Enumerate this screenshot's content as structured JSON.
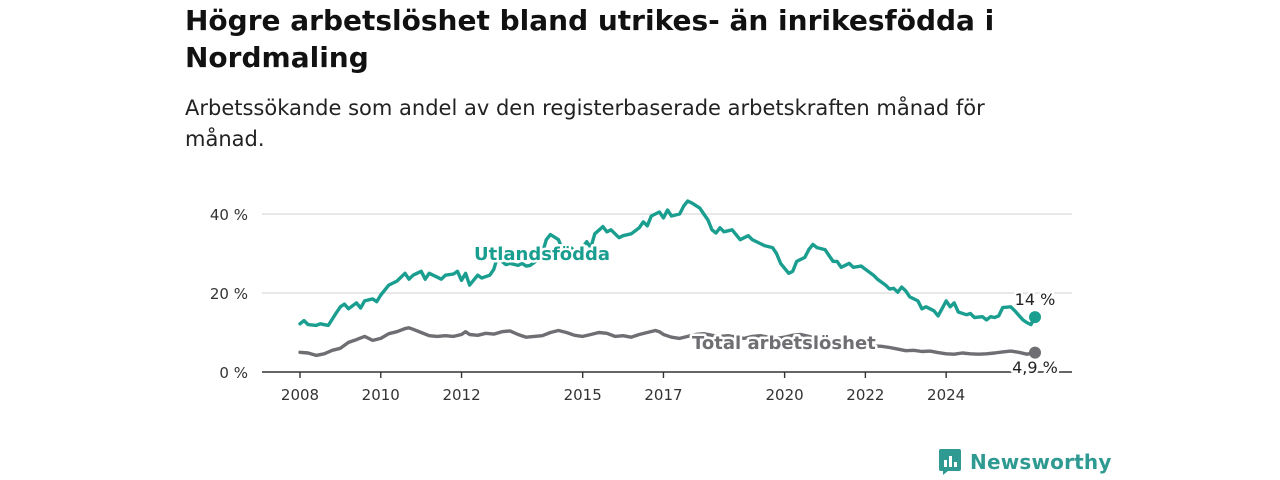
{
  "title": "Högre arbetslöshet bland utrikes- än inrikesfödda i Nordmaling",
  "subtitle": "Arbetssökande som andel av den registerbaserade arbetskraften månad för månad.",
  "brand": {
    "name": "Newsworthy",
    "icon": "newsworthy-logo-icon",
    "color": "#2f9a91"
  },
  "chart_data": {
    "type": "line",
    "title": "Högre arbetslöshet bland utrikes- än inrikesfödda i Nordmaling",
    "subtitle": "Arbetssökande som andel av den registerbaserade arbetskraften månad för månad.",
    "xlabel": "",
    "ylabel": "",
    "x_ticks": [
      2008,
      2010,
      2012,
      2015,
      2017,
      2020,
      2022,
      2024
    ],
    "y_ticks": [
      0,
      20,
      40
    ],
    "y_tick_labels": [
      "0 %",
      "20 %",
      "40 %"
    ],
    "ylim": [
      0,
      45
    ],
    "grid": true,
    "legend": "inline labels",
    "series": [
      {
        "name": "Utlandsfödda",
        "color": "#1a9e8f",
        "end_label": "14 %",
        "points": [
          [
            2008.0,
            12.2
          ],
          [
            2008.1,
            13
          ],
          [
            2008.2,
            12
          ],
          [
            2008.4,
            11.8
          ],
          [
            2008.5,
            12.2
          ],
          [
            2008.7,
            11.8
          ],
          [
            2008.9,
            15
          ],
          [
            2009.0,
            16.5
          ],
          [
            2009.1,
            17.2
          ],
          [
            2009.2,
            16
          ],
          [
            2009.4,
            17.5
          ],
          [
            2009.5,
            16.2
          ],
          [
            2009.6,
            18
          ],
          [
            2009.8,
            18.5
          ],
          [
            2009.9,
            17.8
          ],
          [
            2010.0,
            19.5
          ],
          [
            2010.2,
            22
          ],
          [
            2010.3,
            22.5
          ],
          [
            2010.4,
            23
          ],
          [
            2010.6,
            25
          ],
          [
            2010.7,
            23.5
          ],
          [
            2010.8,
            24.5
          ],
          [
            2011.0,
            25.5
          ],
          [
            2011.1,
            23.5
          ],
          [
            2011.2,
            25
          ],
          [
            2011.4,
            24
          ],
          [
            2011.5,
            23.5
          ],
          [
            2011.6,
            24.5
          ],
          [
            2011.8,
            24.8
          ],
          [
            2011.9,
            25.5
          ],
          [
            2012.0,
            23.2
          ],
          [
            2012.1,
            25
          ],
          [
            2012.2,
            22
          ],
          [
            2012.4,
            24.5
          ],
          [
            2012.5,
            23.8
          ],
          [
            2012.7,
            24.5
          ],
          [
            2012.8,
            26
          ],
          [
            2012.9,
            29.5
          ],
          [
            2013.0,
            28
          ],
          [
            2013.1,
            27.2
          ],
          [
            2013.2,
            27.5
          ],
          [
            2013.4,
            27
          ],
          [
            2013.5,
            27.5
          ],
          [
            2013.6,
            26.8
          ],
          [
            2013.7,
            27
          ],
          [
            2013.9,
            28.5
          ],
          [
            2014.0,
            30
          ],
          [
            2014.1,
            33.5
          ],
          [
            2014.2,
            34.8
          ],
          [
            2014.4,
            33.5
          ],
          [
            2014.5,
            31
          ],
          [
            2014.6,
            30.5
          ],
          [
            2014.7,
            31.5
          ],
          [
            2014.9,
            30
          ],
          [
            2015.0,
            31.5
          ],
          [
            2015.1,
            33
          ],
          [
            2015.2,
            31.5
          ],
          [
            2015.3,
            35
          ],
          [
            2015.5,
            36.8
          ],
          [
            2015.6,
            35.5
          ],
          [
            2015.7,
            36
          ],
          [
            2015.9,
            34
          ],
          [
            2016.0,
            34.5
          ],
          [
            2016.2,
            35
          ],
          [
            2016.4,
            36.5
          ],
          [
            2016.5,
            38
          ],
          [
            2016.6,
            37
          ],
          [
            2016.7,
            39.5
          ],
          [
            2016.9,
            40.5
          ],
          [
            2017.0,
            39
          ],
          [
            2017.1,
            41
          ],
          [
            2017.2,
            39.5
          ],
          [
            2017.4,
            40
          ],
          [
            2017.5,
            42
          ],
          [
            2017.6,
            43.3
          ],
          [
            2017.7,
            42.8
          ],
          [
            2017.9,
            41.5
          ],
          [
            2018.0,
            40
          ],
          [
            2018.1,
            38.5
          ],
          [
            2018.2,
            36
          ],
          [
            2018.3,
            35.2
          ],
          [
            2018.4,
            36.5
          ],
          [
            2018.5,
            35.5
          ],
          [
            2018.7,
            36
          ],
          [
            2018.9,
            33.5
          ],
          [
            2019.0,
            34
          ],
          [
            2019.1,
            34.5
          ],
          [
            2019.2,
            33.5
          ],
          [
            2019.4,
            32.5
          ],
          [
            2019.5,
            32
          ],
          [
            2019.7,
            31.5
          ],
          [
            2019.8,
            30
          ],
          [
            2019.9,
            27.5
          ],
          [
            2020.1,
            25
          ],
          [
            2020.2,
            25.5
          ],
          [
            2020.3,
            28
          ],
          [
            2020.5,
            29
          ],
          [
            2020.6,
            31
          ],
          [
            2020.7,
            32.3
          ],
          [
            2020.8,
            31.5
          ],
          [
            2021.0,
            31
          ],
          [
            2021.1,
            29.5
          ],
          [
            2021.2,
            28
          ],
          [
            2021.3,
            28
          ],
          [
            2021.4,
            26.5
          ],
          [
            2021.6,
            27.5
          ],
          [
            2021.7,
            26.5
          ],
          [
            2021.9,
            26.8
          ],
          [
            2022.0,
            26
          ],
          [
            2022.2,
            24.5
          ],
          [
            2022.3,
            23.5
          ],
          [
            2022.5,
            22
          ],
          [
            2022.6,
            21
          ],
          [
            2022.7,
            21.2
          ],
          [
            2022.8,
            20.2
          ],
          [
            2022.9,
            21.5
          ],
          [
            2023.0,
            20.5
          ],
          [
            2023.1,
            19
          ],
          [
            2023.3,
            18
          ],
          [
            2023.4,
            16
          ],
          [
            2023.5,
            16.5
          ],
          [
            2023.7,
            15.5
          ],
          [
            2023.8,
            14.2
          ],
          [
            2024.0,
            18
          ],
          [
            2024.1,
            16.5
          ],
          [
            2024.2,
            17.5
          ],
          [
            2024.3,
            15.2
          ],
          [
            2024.5,
            14.5
          ],
          [
            2024.6,
            14.8
          ],
          [
            2024.7,
            13.8
          ],
          [
            2024.9,
            14
          ],
          [
            2025.0,
            13.2
          ],
          [
            2025.1,
            14
          ],
          [
            2025.2,
            13.8
          ],
          [
            2025.3,
            14.2
          ],
          [
            2025.4,
            16.3
          ],
          [
            2025.6,
            16.5
          ],
          [
            2025.7,
            15.5
          ],
          [
            2025.9,
            13.2
          ],
          [
            2026.0,
            12.5
          ],
          [
            2026.1,
            12
          ],
          [
            2026.2,
            13.9
          ]
        ]
      },
      {
        "name": "Total arbetslöshet",
        "color": "#6e6e73",
        "end_label": "4,9 %",
        "points": [
          [
            2008.0,
            5
          ],
          [
            2008.2,
            4.8
          ],
          [
            2008.4,
            4.2
          ],
          [
            2008.6,
            4.6
          ],
          [
            2008.8,
            5.5
          ],
          [
            2009.0,
            6
          ],
          [
            2009.2,
            7.5
          ],
          [
            2009.4,
            8.2
          ],
          [
            2009.6,
            9
          ],
          [
            2009.8,
            8
          ],
          [
            2010.0,
            8.5
          ],
          [
            2010.2,
            9.7
          ],
          [
            2010.4,
            10.2
          ],
          [
            2010.6,
            11
          ],
          [
            2010.7,
            11.2
          ],
          [
            2010.8,
            10.8
          ],
          [
            2011.0,
            10
          ],
          [
            2011.2,
            9.2
          ],
          [
            2011.4,
            9
          ],
          [
            2011.6,
            9.2
          ],
          [
            2011.8,
            9
          ],
          [
            2012.0,
            9.5
          ],
          [
            2012.1,
            10.2
          ],
          [
            2012.2,
            9.5
          ],
          [
            2012.4,
            9.3
          ],
          [
            2012.6,
            9.8
          ],
          [
            2012.8,
            9.6
          ],
          [
            2013.0,
            10.2
          ],
          [
            2013.2,
            10.4
          ],
          [
            2013.4,
            9.5
          ],
          [
            2013.6,
            8.8
          ],
          [
            2013.8,
            9
          ],
          [
            2014.0,
            9.2
          ],
          [
            2014.2,
            10
          ],
          [
            2014.4,
            10.5
          ],
          [
            2014.6,
            10
          ],
          [
            2014.8,
            9.3
          ],
          [
            2015.0,
            9
          ],
          [
            2015.2,
            9.5
          ],
          [
            2015.4,
            10
          ],
          [
            2015.6,
            9.8
          ],
          [
            2015.8,
            9
          ],
          [
            2016.0,
            9.2
          ],
          [
            2016.2,
            8.8
          ],
          [
            2016.4,
            9.5
          ],
          [
            2016.6,
            10
          ],
          [
            2016.8,
            10.5
          ],
          [
            2016.9,
            10.2
          ],
          [
            2017.0,
            9.5
          ],
          [
            2017.2,
            8.8
          ],
          [
            2017.4,
            8.5
          ],
          [
            2017.6,
            9
          ],
          [
            2017.8,
            9.5
          ],
          [
            2018.0,
            9.7
          ],
          [
            2018.2,
            9.3
          ],
          [
            2018.4,
            9
          ],
          [
            2018.6,
            9.2
          ],
          [
            2018.8,
            8.8
          ],
          [
            2019.0,
            8.5
          ],
          [
            2019.2,
            9
          ],
          [
            2019.4,
            9.2
          ],
          [
            2019.6,
            8.8
          ],
          [
            2019.8,
            8.5
          ],
          [
            2020.0,
            8.8
          ],
          [
            2020.2,
            9.3
          ],
          [
            2020.4,
            9.5
          ],
          [
            2020.6,
            9
          ],
          [
            2020.8,
            8.5
          ],
          [
            2021.0,
            8.2
          ],
          [
            2021.2,
            8
          ],
          [
            2021.4,
            7.8
          ],
          [
            2021.6,
            7.5
          ],
          [
            2021.8,
            7.3
          ],
          [
            2022.0,
            7
          ],
          [
            2022.2,
            6.6
          ],
          [
            2022.4,
            6.5
          ],
          [
            2022.6,
            6.2
          ],
          [
            2022.8,
            5.8
          ],
          [
            2023.0,
            5.4
          ],
          [
            2023.2,
            5.5
          ],
          [
            2023.4,
            5.2
          ],
          [
            2023.6,
            5.3
          ],
          [
            2023.8,
            4.9
          ],
          [
            2024.0,
            4.6
          ],
          [
            2024.2,
            4.5
          ],
          [
            2024.4,
            4.8
          ],
          [
            2024.6,
            4.6
          ],
          [
            2024.8,
            4.5
          ],
          [
            2025.0,
            4.6
          ],
          [
            2025.2,
            4.8
          ],
          [
            2025.4,
            5.1
          ],
          [
            2025.6,
            5.3
          ],
          [
            2025.8,
            5
          ],
          [
            2026.0,
            4.5
          ],
          [
            2026.2,
            4.9
          ]
        ]
      }
    ]
  }
}
